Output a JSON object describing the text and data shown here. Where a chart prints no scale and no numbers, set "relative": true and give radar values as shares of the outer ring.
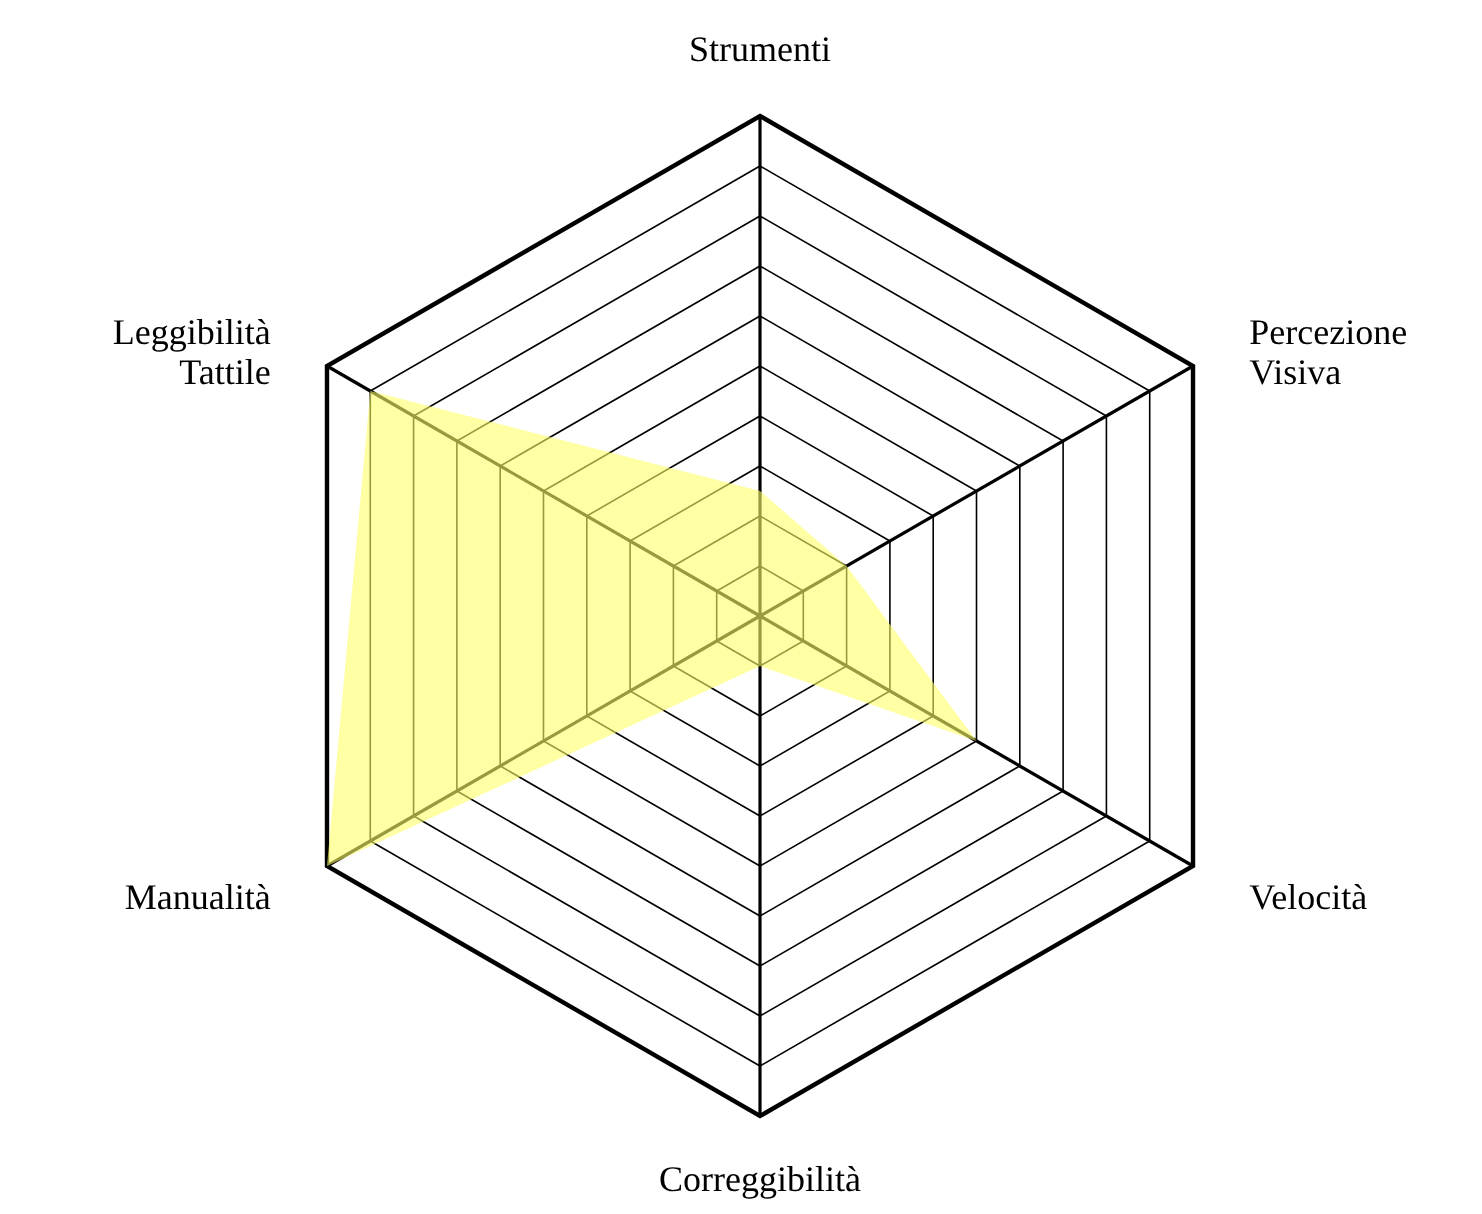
{
  "chart_data": {
    "type": "radar",
    "relative": true,
    "grid": true,
    "categories": [
      "Strumenti",
      "Percezione\nVisiva",
      "Velocità",
      "Correggibilità",
      "Manualità",
      "Leggibilità\nTattile"
    ],
    "series": [
      {
        "color": "#ffff66",
        "values": [
          0.25,
          0.2,
          0.5,
          0.1,
          1.0,
          0.9
        ]
      }
    ]
  }
}
